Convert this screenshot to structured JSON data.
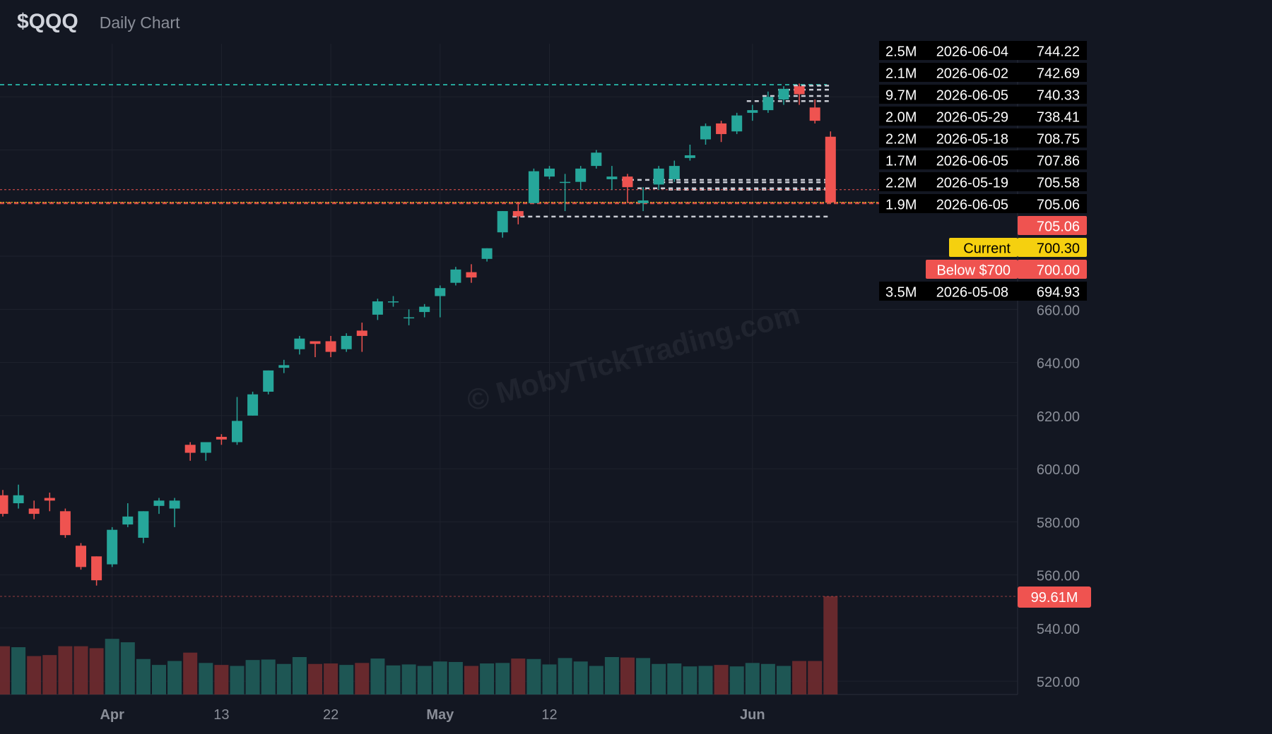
{
  "header": {
    "symbol": "$QQQ",
    "subtitle": "Daily Chart"
  },
  "watermark": "© MobyTickTrading.com",
  "colors": {
    "background": "#131722",
    "grid": "#1e222d",
    "up": "#26a69a",
    "down": "#ef5350",
    "up_volume": "#1f5a57",
    "down_volume": "#6b2a2e",
    "current": "#f5d00f",
    "label_bg": "#000000",
    "axis_text": "#8a8e98"
  },
  "chart_data": {
    "type": "candlestick",
    "title": "Daily Chart",
    "ylim": [
      515,
      760
    ],
    "y_ticks": [
      "520.00",
      "540.00",
      "560.00",
      "580.00",
      "600.00",
      "620.00",
      "640.00",
      "660.00"
    ],
    "x_ticks": [
      {
        "label": "Apr",
        "index": 7
      },
      {
        "label": "13",
        "index": 14
      },
      {
        "label": "22",
        "index": 21
      },
      {
        "label": "May",
        "index": 28
      },
      {
        "label": "12",
        "index": 35
      },
      {
        "label": "Jun",
        "index": 48
      }
    ],
    "candles": [
      {
        "o": 590,
        "h": 592,
        "l": 582,
        "c": 583,
        "v": 49.0
      },
      {
        "o": 587,
        "h": 594,
        "l": 585,
        "c": 590,
        "v": 48.0
      },
      {
        "o": 585,
        "h": 588,
        "l": 581,
        "c": 583,
        "v": 39.0
      },
      {
        "o": 589,
        "h": 591,
        "l": 584,
        "c": 588,
        "v": 40.0
      },
      {
        "o": 584,
        "h": 585,
        "l": 574,
        "c": 575,
        "v": 49.0
      },
      {
        "o": 571,
        "h": 572,
        "l": 562,
        "c": 563,
        "v": 49.0
      },
      {
        "o": 567,
        "h": 567,
        "l": 556,
        "c": 558,
        "v": 47.0
      },
      {
        "o": 564,
        "h": 578,
        "l": 563,
        "c": 577,
        "v": 56.5
      },
      {
        "o": 579,
        "h": 587,
        "l": 578,
        "c": 582,
        "v": 53.0
      },
      {
        "o": 574,
        "h": 584,
        "l": 572,
        "c": 584,
        "v": 36.0
      },
      {
        "o": 586,
        "h": 589,
        "l": 583,
        "c": 588,
        "v": 30.0
      },
      {
        "o": 585,
        "h": 589,
        "l": 578,
        "c": 588,
        "v": 34.0
      },
      {
        "o": 609,
        "h": 610,
        "l": 603,
        "c": 606,
        "v": 42.5
      },
      {
        "o": 606,
        "h": 610,
        "l": 603,
        "c": 610,
        "v": 32.0
      },
      {
        "o": 612,
        "h": 613,
        "l": 609,
        "c": 611,
        "v": 30.0
      },
      {
        "o": 610,
        "h": 627,
        "l": 609,
        "c": 618,
        "v": 29.0
      },
      {
        "o": 620,
        "h": 629,
        "l": 620,
        "c": 628,
        "v": 35.0
      },
      {
        "o": 629,
        "h": 637,
        "l": 628,
        "c": 637,
        "v": 35.5
      },
      {
        "o": 638,
        "h": 641,
        "l": 636,
        "c": 639,
        "v": 31.0
      },
      {
        "o": 645,
        "h": 650,
        "l": 643,
        "c": 649,
        "v": 38.0
      },
      {
        "o": 648,
        "h": 648,
        "l": 642,
        "c": 647,
        "v": 31.0
      },
      {
        "o": 648,
        "h": 650,
        "l": 642,
        "c": 644,
        "v": 31.5
      },
      {
        "o": 645,
        "h": 651,
        "l": 644,
        "c": 650,
        "v": 30.0
      },
      {
        "o": 652,
        "h": 655,
        "l": 644,
        "c": 650,
        "v": 32.0
      },
      {
        "o": 658,
        "h": 664,
        "l": 656,
        "c": 663,
        "v": 36.5
      },
      {
        "o": 663,
        "h": 665,
        "l": 661,
        "c": 663,
        "v": 29.5
      },
      {
        "o": 657,
        "h": 660,
        "l": 654,
        "c": 657,
        "v": 30.5
      },
      {
        "o": 659,
        "h": 662,
        "l": 657,
        "c": 661,
        "v": 29.0
      },
      {
        "o": 665,
        "h": 669,
        "l": 657,
        "c": 668,
        "v": 33.5
      },
      {
        "o": 670,
        "h": 676,
        "l": 669,
        "c": 675,
        "v": 33.0
      },
      {
        "o": 674,
        "h": 677,
        "l": 670,
        "c": 672,
        "v": 29.0
      },
      {
        "o": 679,
        "h": 683,
        "l": 678,
        "c": 683,
        "v": 31.5
      },
      {
        "o": 689,
        "h": 697,
        "l": 687,
        "c": 697,
        "v": 32.0
      },
      {
        "o": 697,
        "h": 700,
        "l": 692,
        "c": 695,
        "v": 36.5
      },
      {
        "o": 700,
        "h": 713,
        "l": 700,
        "c": 712,
        "v": 36.0
      },
      {
        "o": 710,
        "h": 714,
        "l": 709,
        "c": 713,
        "v": 30.5
      },
      {
        "o": 708,
        "h": 711,
        "l": 697,
        "c": 708,
        "v": 37.0
      },
      {
        "o": 708,
        "h": 714,
        "l": 705,
        "c": 713,
        "v": 33.5
      },
      {
        "o": 714,
        "h": 720,
        "l": 713,
        "c": 719,
        "v": 29.0
      },
      {
        "o": 709,
        "h": 714,
        "l": 705,
        "c": 710,
        "v": 38.0
      },
      {
        "o": 710,
        "h": 711,
        "l": 700,
        "c": 706,
        "v": 37.5
      },
      {
        "o": 700,
        "h": 706,
        "l": 697,
        "c": 701,
        "v": 37.0
      },
      {
        "o": 707,
        "h": 714,
        "l": 705,
        "c": 713,
        "v": 31.0
      },
      {
        "o": 709,
        "h": 716,
        "l": 708,
        "c": 714,
        "v": 31.5
      },
      {
        "o": 717,
        "h": 722,
        "l": 716,
        "c": 718,
        "v": 28.5
      },
      {
        "o": 724,
        "h": 730,
        "l": 722,
        "c": 729,
        "v": 29.0
      },
      {
        "o": 730,
        "h": 731,
        "l": 723,
        "c": 726,
        "v": 30.0
      },
      {
        "o": 727,
        "h": 734,
        "l": 726,
        "c": 733,
        "v": 28.5
      },
      {
        "o": 734,
        "h": 737,
        "l": 731,
        "c": 735,
        "v": 32.0
      },
      {
        "o": 735,
        "h": 742,
        "l": 734,
        "c": 740,
        "v": 31.0
      },
      {
        "o": 739,
        "h": 744,
        "l": 737,
        "c": 743,
        "v": 29.0
      },
      {
        "o": 744,
        "h": 745,
        "l": 737,
        "c": 741,
        "v": 34.0
      },
      {
        "o": 736,
        "h": 739,
        "l": 730,
        "c": 731,
        "v": 34.0
      },
      {
        "o": 725,
        "h": 727,
        "l": 700,
        "c": 700.3,
        "v": 99.61
      }
    ],
    "levels": [
      {
        "price": 744.22,
        "volume": "2.5M",
        "date": "2026-06-04",
        "kind": "volume",
        "dashed": true,
        "from_index": 51
      },
      {
        "price": 742.69,
        "volume": "2.1M",
        "date": "2026-06-02",
        "kind": "volume",
        "dashed": true,
        "from_index": 50
      },
      {
        "price": 740.33,
        "volume": "9.7M",
        "date": "2026-06-05",
        "kind": "volume",
        "dashed": true,
        "from_index": 49
      },
      {
        "price": 738.41,
        "volume": "2.0M",
        "date": "2026-05-29",
        "kind": "volume",
        "dashed": true,
        "from_index": 48
      },
      {
        "price": 708.75,
        "volume": "2.2M",
        "date": "2026-05-18",
        "kind": "volume",
        "dashed": true,
        "from_index": 40
      },
      {
        "price": 707.86,
        "volume": "1.7M",
        "date": "2026-06-05",
        "kind": "volume",
        "dashed": true,
        "from_index": 42
      },
      {
        "price": 705.58,
        "volume": "2.2M",
        "date": "2026-05-19",
        "kind": "volume",
        "dashed": true,
        "from_index": 41
      },
      {
        "price": 705.06,
        "volume": "1.9M",
        "date": "2026-06-05",
        "kind": "volume",
        "dashed": true,
        "from_index": 43
      },
      {
        "price": 694.93,
        "volume": "3.5M",
        "date": "2026-05-08",
        "kind": "volume",
        "dashed": true,
        "from_index": 33
      }
    ],
    "price_labels": [
      {
        "price": 705.06,
        "text": "705.06",
        "tag": "",
        "color": "#ef5350"
      },
      {
        "price": 700.3,
        "text": "700.30",
        "tag": "Current",
        "color": "#f5d00f"
      },
      {
        "price": 700.0,
        "text": "700.00",
        "tag": "Below $700",
        "color": "#ef5350"
      }
    ],
    "volume_label": {
      "text": "99.61M",
      "color": "#ef5350"
    },
    "resistance_line": {
      "price": 744.6,
      "color": "#26a69a"
    },
    "volume_max": 99.61
  }
}
